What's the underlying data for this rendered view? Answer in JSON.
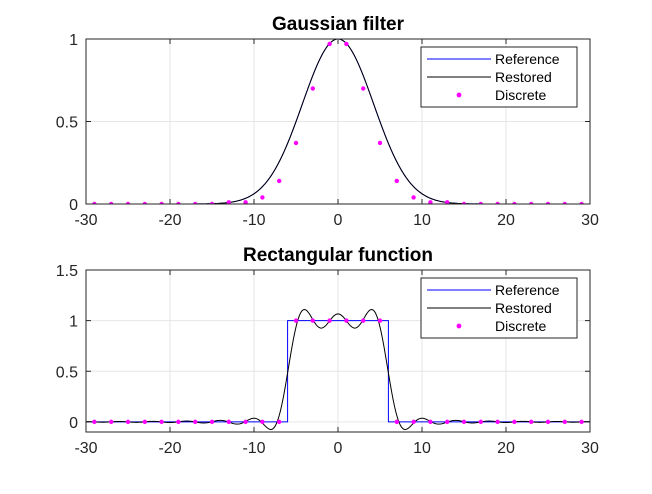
{
  "colors": {
    "reference": "#0000ff",
    "restored": "#000000",
    "discrete": "#ff00ff",
    "grid": "#e6e6e6",
    "axis": "#262626"
  },
  "chart_data": [
    {
      "type": "line",
      "title": "Gaussian filter",
      "xlabel": "",
      "ylabel": "",
      "xlim": [
        -30,
        30
      ],
      "ylim": [
        0,
        1
      ],
      "xticks": [
        -30,
        -20,
        -10,
        0,
        10,
        20,
        30
      ],
      "yticks": [
        0,
        0.5,
        1
      ],
      "xtick_labels": [
        "-30",
        "-20",
        "-10",
        "0",
        "10",
        "20",
        "30"
      ],
      "ytick_labels": [
        "0",
        "0.5",
        "1"
      ],
      "grid": true,
      "legend_position": "top-right",
      "legend": [
        "Reference",
        "Restored",
        "Discrete"
      ],
      "series": [
        {
          "name": "Reference",
          "kind": "line",
          "color": "#0000ff",
          "function": "gaussian",
          "sigma": 4.24
        },
        {
          "name": "Restored",
          "kind": "line",
          "color": "#000000",
          "function": "gaussian",
          "sigma": 4.24
        },
        {
          "name": "Discrete",
          "kind": "markers",
          "color": "#ff00ff",
          "x": [
            -29,
            -27,
            -25,
            -23,
            -21,
            -19,
            -17,
            -15,
            -13,
            -11,
            -9,
            -7,
            -5,
            -3,
            -1,
            1,
            3,
            5,
            7,
            9,
            11,
            13,
            15,
            17,
            19,
            21,
            23,
            25,
            27,
            29
          ],
          "y": [
            0,
            0,
            0,
            0,
            0,
            0,
            0,
            0,
            0.01,
            0.01,
            0.04,
            0.14,
            0.37,
            0.7,
            0.97,
            0.97,
            0.7,
            0.37,
            0.14,
            0.04,
            0.01,
            0.01,
            0,
            0,
            0,
            0,
            0,
            0,
            0,
            0
          ]
        }
      ]
    },
    {
      "type": "line",
      "title": "Rectangular function",
      "xlabel": "",
      "ylabel": "",
      "xlim": [
        -30,
        30
      ],
      "ylim": [
        -0.1,
        1.5
      ],
      "xticks": [
        -30,
        -20,
        -10,
        0,
        10,
        20,
        30
      ],
      "yticks": [
        0,
        0.5,
        1,
        1.5
      ],
      "xtick_labels": [
        "-30",
        "-20",
        "-10",
        "0",
        "10",
        "20",
        "30"
      ],
      "ytick_labels": [
        "0",
        "0.5",
        "1",
        "1.5"
      ],
      "grid": true,
      "legend_position": "top-right",
      "legend": [
        "Reference",
        "Restored",
        "Discrete"
      ],
      "series": [
        {
          "name": "Reference",
          "kind": "line",
          "color": "#0000ff",
          "function": "rect",
          "halfwidth": 6
        },
        {
          "name": "Restored",
          "kind": "line",
          "color": "#000000",
          "function": "rect_bandlimited",
          "halfwidth": 6,
          "period": 2
        },
        {
          "name": "Discrete",
          "kind": "markers",
          "color": "#ff00ff",
          "x": [
            -29,
            -27,
            -25,
            -23,
            -21,
            -19,
            -17,
            -15,
            -13,
            -11,
            -9,
            -7,
            -5,
            -3,
            -1,
            1,
            3,
            5,
            7,
            9,
            11,
            13,
            15,
            17,
            19,
            21,
            23,
            25,
            27,
            29
          ],
          "y": [
            0,
            0,
            0,
            0,
            0,
            0,
            0,
            0,
            0,
            0,
            0,
            0,
            1,
            1,
            1,
            1,
            1,
            1,
            0,
            0,
            0,
            0,
            0,
            0,
            0,
            0,
            0,
            0,
            0,
            0
          ]
        }
      ]
    }
  ]
}
